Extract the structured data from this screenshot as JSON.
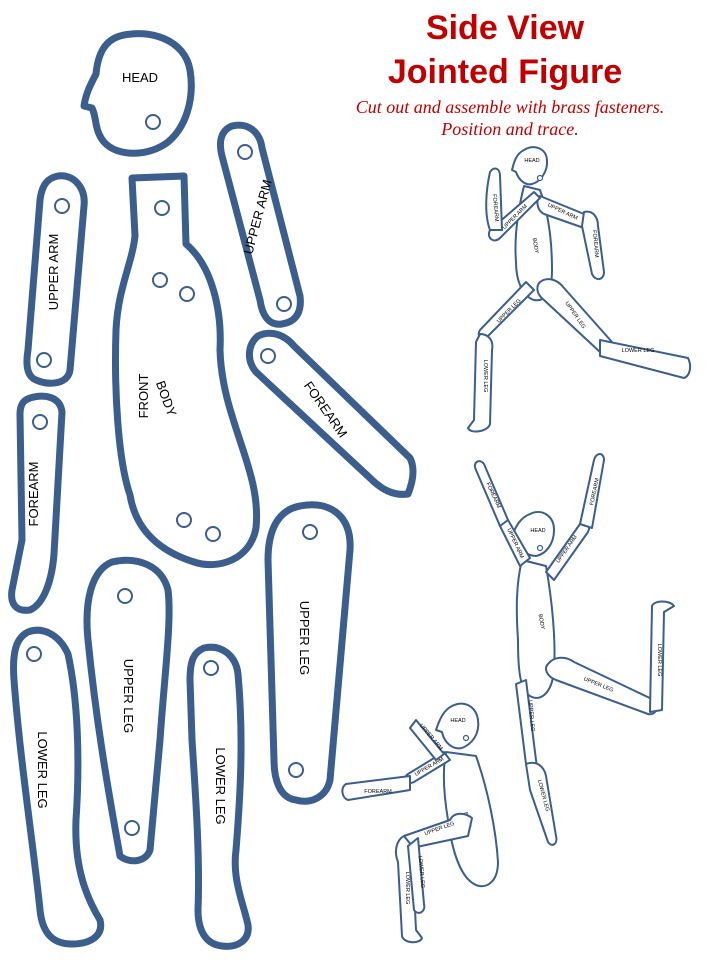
{
  "title": {
    "line1": "Side View",
    "line2": "Jointed Figure"
  },
  "instructions": {
    "line1": "Cut out and assemble with brass fasteners.",
    "line2": "Position and trace."
  },
  "pieces": {
    "head": "HEAD",
    "body": "BODY",
    "front": "FRONT",
    "upper_arm": "UPPER ARM",
    "forearm": "FOREARM",
    "upper_leg": "UPPER LEG",
    "lower_leg": "LOWER   LEG"
  },
  "figure_labels": {
    "head": "HEAD",
    "body": "BODY",
    "upper_arm": "UPPER ARM",
    "forearm": "FOREARM",
    "upper_leg": "UPPER LEG",
    "lower_leg": "LOWER LEG"
  },
  "colors": {
    "title": "#c00000",
    "outline": "#3b5e8c"
  }
}
